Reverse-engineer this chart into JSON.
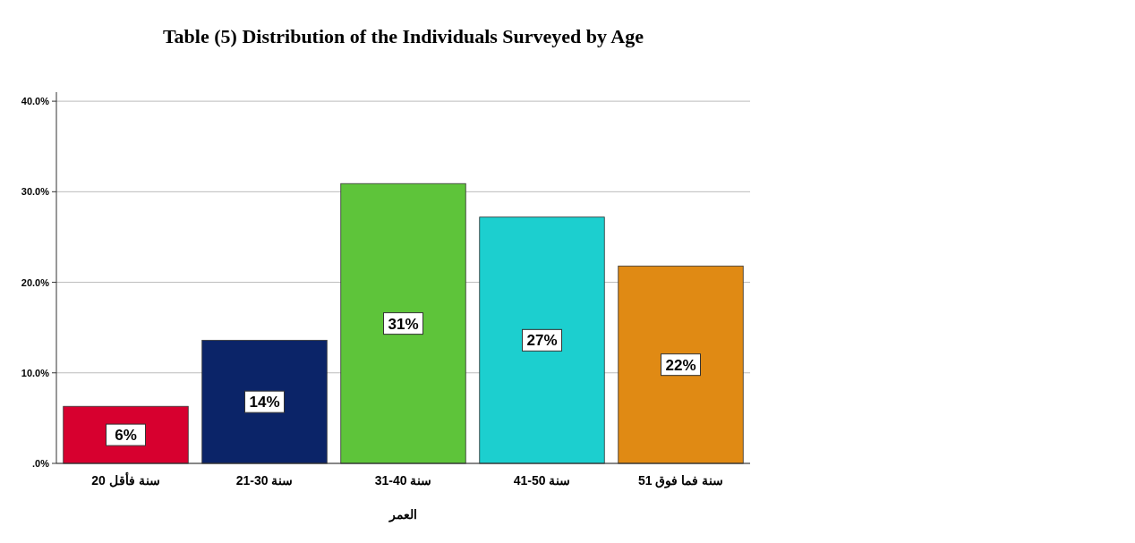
{
  "chart_data": {
    "type": "bar",
    "title": "Table (5) Distribution of the Individuals Surveyed by Age",
    "xlabel": "العمر",
    "categories": [
      "20 سنة فأقل",
      "21-30 سنة",
      "31-40 سنة",
      "41-50 سنة",
      "51 سنة فما فوق"
    ],
    "values": [
      6.3,
      13.6,
      30.9,
      27.2,
      21.8
    ],
    "colors": [
      "#d7002f",
      "#0b2468",
      "#5ec43a",
      "#1ccfcf",
      "#e08a14"
    ],
    "value_labels": [
      "6%",
      "14%",
      "31%",
      "27%",
      "22%"
    ],
    "ylim": [
      0,
      41
    ],
    "yticks": [
      {
        "value": 0,
        "label": ".0%"
      },
      {
        "value": 10,
        "label": "10.0%"
      },
      {
        "value": 20,
        "label": "20.0%"
      },
      {
        "value": 30,
        "label": "30.0%"
      },
      {
        "value": 40,
        "label": "40.0%"
      }
    ],
    "grid": "y"
  }
}
